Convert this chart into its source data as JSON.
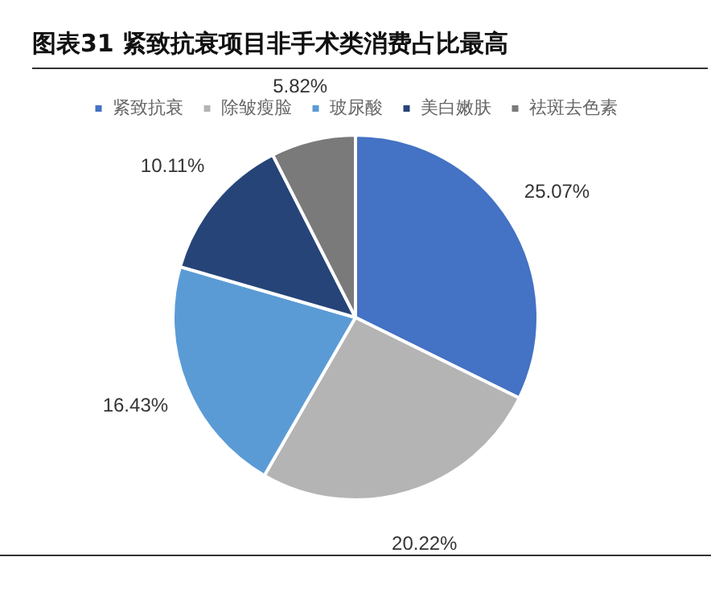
{
  "chart_data": {
    "type": "pie",
    "title": "图表31  紧致抗衰项目非手术类消费占比最高",
    "categories": [
      "紧致抗衰",
      "除皱瘦脸",
      "玻尿酸",
      "美白嫩肤",
      "祛斑去色素"
    ],
    "values": [
      25.07,
      20.22,
      16.43,
      10.11,
      5.82
    ],
    "colors": [
      "#4472c4",
      "#b4b4b4",
      "#5b9bd5",
      "#264478",
      "#7a7a7a"
    ],
    "value_labels": [
      "25.07%",
      "20.22%",
      "16.43%",
      "10.11%",
      "5.82%"
    ],
    "legend": "top"
  }
}
